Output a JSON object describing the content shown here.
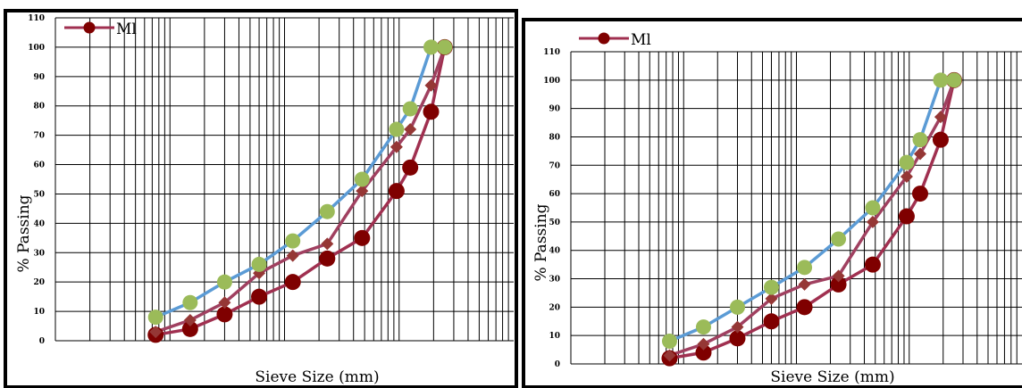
{
  "colors": {
    "frame": "#000000",
    "grid": "#000000",
    "upper_limit": "#5b9bd5",
    "upper_marker": "#9bbb59",
    "mix": "#a04060",
    "mix_marker": "#953735",
    "lower_limit": "#a03050",
    "lower_marker": "#7f0000"
  },
  "chart_data": [
    {
      "type": "line",
      "xlabel": "Sieve Size (mm)",
      "ylabel": "% Passing",
      "ylim": [
        0,
        110
      ],
      "yticks": [
        "0",
        "10",
        "20",
        "30",
        "40",
        "50",
        "60",
        "70",
        "80",
        "90",
        "100",
        "110"
      ],
      "xscale": "log",
      "xlim": [
        0.01,
        100
      ],
      "legend": {
        "position": "top-left",
        "entries": [
          {
            "label": "Ml",
            "series": "lower"
          }
        ]
      },
      "series": [
        {
          "id": "upper",
          "x": [
            0.075,
            0.15,
            0.3,
            0.6,
            1.18,
            2.36,
            4.75,
            9.5,
            12.5,
            19,
            25
          ],
          "values": [
            8,
            13,
            20,
            26,
            34,
            44,
            55,
            72,
            79,
            100,
            100
          ]
        },
        {
          "id": "mix",
          "x": [
            0.075,
            0.15,
            0.3,
            0.6,
            1.18,
            2.36,
            4.75,
            9.5,
            12.5,
            19,
            25
          ],
          "values": [
            3,
            7,
            13,
            23,
            29,
            33,
            51,
            66,
            72,
            87,
            100
          ]
        },
        {
          "id": "lower",
          "x": [
            0.075,
            0.15,
            0.3,
            0.6,
            1.18,
            2.36,
            4.75,
            9.5,
            12.5,
            19,
            25
          ],
          "values": [
            2,
            4,
            9,
            15,
            20,
            28,
            35,
            51,
            59,
            78,
            100
          ]
        }
      ]
    },
    {
      "type": "line",
      "xlabel": "Sieve Size (mm)",
      "ylabel": "% Passing",
      "ylim": [
        0,
        110
      ],
      "yticks": [
        "0",
        "10",
        "20",
        "30",
        "40",
        "50",
        "60",
        "70",
        "80",
        "90",
        "100",
        "110"
      ],
      "xscale": "log",
      "xlim": [
        0.01,
        100
      ],
      "legend": {
        "position": "top-left",
        "entries": [
          {
            "label": "Ml",
            "series": "lower"
          }
        ]
      },
      "series": [
        {
          "id": "upper",
          "x": [
            0.075,
            0.15,
            0.3,
            0.6,
            1.18,
            2.36,
            4.75,
            9.5,
            12.5,
            19,
            25
          ],
          "values": [
            8,
            13,
            20,
            27,
            34,
            44,
            55,
            71,
            79,
            100,
            100
          ]
        },
        {
          "id": "mix",
          "x": [
            0.075,
            0.15,
            0.3,
            0.6,
            1.18,
            2.36,
            4.75,
            9.5,
            12.5,
            19,
            25
          ],
          "values": [
            3,
            7,
            13,
            23,
            28,
            31,
            50,
            66,
            74,
            87,
            100
          ]
        },
        {
          "id": "lower",
          "x": [
            0.075,
            0.15,
            0.3,
            0.6,
            1.18,
            2.36,
            4.75,
            9.5,
            12.5,
            19,
            25
          ],
          "values": [
            2,
            4,
            9,
            15,
            20,
            28,
            35,
            52,
            60,
            79,
            100
          ]
        }
      ]
    }
  ]
}
